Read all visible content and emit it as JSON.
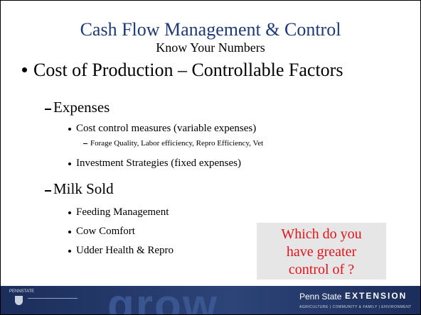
{
  "title": "Cash Flow Management & Control",
  "subtitle": "Know Your Numbers",
  "bullets": [
    {
      "text": "Cost of Production – Controllable Factors",
      "children": [
        {
          "text": "Expenses",
          "children": [
            {
              "text": "Cost control measures (variable expenses)",
              "children": [
                {
                  "text": "Forage Quality, Labor efficiency, Repro Efficiency, Vet"
                }
              ]
            },
            {
              "text": "Investment Strategies (fixed expenses)"
            }
          ]
        },
        {
          "text": "Milk Sold",
          "children": [
            {
              "text": "Feeding Management"
            },
            {
              "text": "Cow Comfort"
            },
            {
              "text": "Udder Health & Repro"
            }
          ]
        }
      ]
    }
  ],
  "callout": [
    "Which do you",
    "have greater",
    "control of ?"
  ],
  "footer": {
    "logo": "PENNSTATE",
    "watermark": "grow",
    "brand": "Penn State",
    "unit": "EXTENSION",
    "tagline": "AGRICULTURE | COMMUNITY & FAMILY | ENVIRONMENT"
  }
}
